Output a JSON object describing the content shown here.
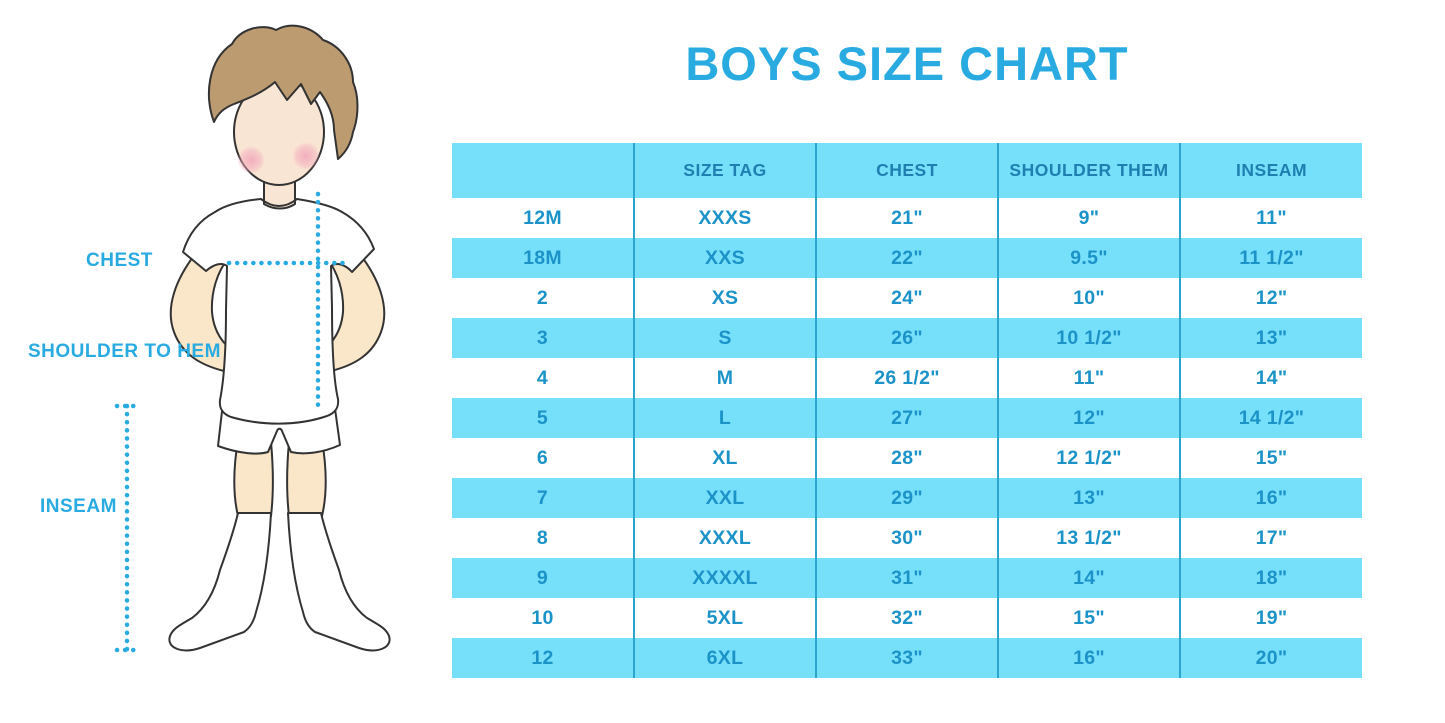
{
  "title": "BOYS SIZE CHART",
  "diagram": {
    "labels": {
      "chest": "CHEST",
      "shoulder_to_hem": "SHOULDER TO HEM",
      "inseam": "INSEAM"
    }
  },
  "chart_data": {
    "type": "table",
    "title": "BOYS SIZE CHART",
    "columns": [
      "",
      "SIZE TAG",
      "CHEST",
      "SHOULDER THEM",
      "INSEAM"
    ],
    "rows": [
      [
        "12M",
        "XXXS",
        "21\"",
        "9\"",
        "11\""
      ],
      [
        "18M",
        "XXS",
        "22\"",
        "9.5\"",
        "11 1/2\""
      ],
      [
        "2",
        "XS",
        "24\"",
        "10\"",
        "12\""
      ],
      [
        "3",
        "S",
        "26\"",
        "10 1/2\"",
        "13\""
      ],
      [
        "4",
        "M",
        "26 1/2\"",
        "11\"",
        "14\""
      ],
      [
        "5",
        "L",
        "27\"",
        "12\"",
        "14 1/2\""
      ],
      [
        "6",
        "XL",
        "28\"",
        "12 1/2\"",
        "15\""
      ],
      [
        "7",
        "XXL",
        "29\"",
        "13\"",
        "16\""
      ],
      [
        "8",
        "XXXL",
        "30\"",
        "13 1/2\"",
        "17\""
      ],
      [
        "9",
        "XXXXL",
        "31\"",
        "14\"",
        "18\""
      ],
      [
        "10",
        "5XL",
        "32\"",
        "15\"",
        "19\""
      ],
      [
        "12",
        "6XL",
        "33\"",
        "16\"",
        "20\""
      ]
    ],
    "layout": {
      "stripes": "alternating white / light blue",
      "legend": "none",
      "grid": "vertical dividers only"
    }
  },
  "colors": {
    "accent_blue": "#29ABE2",
    "stripe_blue": "#76E0FA",
    "divider_blue": "#2BA4D0",
    "header_text": "#1E7FB0",
    "cell_text": "#1B93C9",
    "skin": "#FAE6C9",
    "face": "#F9E5D3",
    "hair": "#BD9B71",
    "blush": "#F2A9BC",
    "outline": "#333333"
  }
}
